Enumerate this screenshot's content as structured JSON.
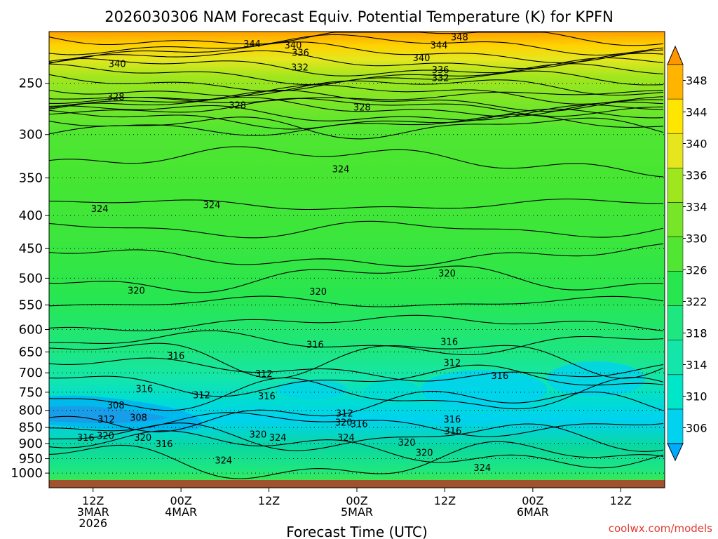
{
  "chart_data": {
    "type": "heatmap",
    "title": "2026030306 NAM Forecast Equiv. Potential Temperature (K) for KPFN",
    "xlabel": "Forecast Time (UTC)",
    "ylabel": "",
    "credit": "coolwx.com/models",
    "x_range_hours": [
      0,
      84
    ],
    "x_ticks": [
      {
        "hour": 6,
        "lines": [
          "12Z",
          "3MAR",
          "2026"
        ]
      },
      {
        "hour": 18,
        "lines": [
          "00Z",
          "4MAR"
        ]
      },
      {
        "hour": 30,
        "lines": [
          "12Z"
        ]
      },
      {
        "hour": 42,
        "lines": [
          "00Z",
          "5MAR"
        ]
      },
      {
        "hour": 54,
        "lines": [
          "12Z"
        ]
      },
      {
        "hour": 66,
        "lines": [
          "00Z",
          "6MAR"
        ]
      },
      {
        "hour": 78,
        "lines": [
          "12Z"
        ]
      }
    ],
    "y_range_hpa": [
      1025,
      200
    ],
    "y_ticks": [
      "250",
      "300",
      "350",
      "400",
      "450",
      "500",
      "550",
      "600",
      "650",
      "700",
      "750",
      "800",
      "850",
      "900",
      "950",
      "1000"
    ],
    "colorbar": {
      "labels": [
        "306",
        "310",
        "314",
        "318",
        "322",
        "326",
        "330",
        "334",
        "336",
        "340",
        "344",
        "348"
      ],
      "colors": [
        "#00aaff",
        "#00d2f0",
        "#00e6c8",
        "#14e6aa",
        "#1ee680",
        "#28e650",
        "#50e632",
        "#78e628",
        "#a0e61e",
        "#e6e61e",
        "#ffe600",
        "#ffb400",
        "#ff9600"
      ]
    },
    "contour_labels": [
      {
        "text": "344",
        "hour": 27.7,
        "hpa": 217
      },
      {
        "text": "340",
        "hour": 33.3,
        "hpa": 218
      },
      {
        "text": "336",
        "hour": 34.3,
        "hpa": 224
      },
      {
        "text": "332",
        "hour": 34.2,
        "hpa": 236
      },
      {
        "text": "348",
        "hour": 56.0,
        "hpa": 212
      },
      {
        "text": "344",
        "hour": 53.2,
        "hpa": 218
      },
      {
        "text": "340",
        "hour": 50.8,
        "hpa": 228
      },
      {
        "text": "336",
        "hour": 53.4,
        "hpa": 238
      },
      {
        "text": "332",
        "hour": 53.4,
        "hpa": 245
      },
      {
        "text": "340",
        "hour": 9.3,
        "hpa": 233
      },
      {
        "text": "328",
        "hour": 9.1,
        "hpa": 262
      },
      {
        "text": "328",
        "hour": 25.7,
        "hpa": 270
      },
      {
        "text": "328",
        "hour": 42.7,
        "hpa": 272
      },
      {
        "text": "324",
        "hour": 39.8,
        "hpa": 339
      },
      {
        "text": "324",
        "hour": 6.9,
        "hpa": 390
      },
      {
        "text": "324",
        "hour": 22.2,
        "hpa": 385
      },
      {
        "text": "320",
        "hour": 54.3,
        "hpa": 491
      },
      {
        "text": "320",
        "hour": 36.7,
        "hpa": 524
      },
      {
        "text": "320",
        "hour": 11.9,
        "hpa": 522
      },
      {
        "text": "316",
        "hour": 36.3,
        "hpa": 632
      },
      {
        "text": "316",
        "hour": 54.6,
        "hpa": 626
      },
      {
        "text": "316",
        "hour": 17.3,
        "hpa": 658
      },
      {
        "text": "312",
        "hour": 55.0,
        "hpa": 675
      },
      {
        "text": "316",
        "hour": 61.5,
        "hpa": 707
      },
      {
        "text": "312",
        "hour": 29.3,
        "hpa": 701
      },
      {
        "text": "316",
        "hour": 13.0,
        "hpa": 740
      },
      {
        "text": "312",
        "hour": 20.8,
        "hpa": 757
      },
      {
        "text": "316",
        "hour": 29.7,
        "hpa": 760
      },
      {
        "text": "308",
        "hour": 9.1,
        "hpa": 785
      },
      {
        "text": "312",
        "hour": 7.8,
        "hpa": 825
      },
      {
        "text": "308",
        "hour": 12.2,
        "hpa": 820
      },
      {
        "text": "312",
        "hour": 40.3,
        "hpa": 808
      },
      {
        "text": "320",
        "hour": 40.2,
        "hpa": 834
      },
      {
        "text": "316",
        "hour": 42.3,
        "hpa": 838
      },
      {
        "text": "316",
        "hour": 55.0,
        "hpa": 825
      },
      {
        "text": "316",
        "hour": 55.1,
        "hpa": 860
      },
      {
        "text": "316",
        "hour": 5.0,
        "hpa": 880
      },
      {
        "text": "320",
        "hour": 7.7,
        "hpa": 875
      },
      {
        "text": "320",
        "hour": 12.8,
        "hpa": 880
      },
      {
        "text": "316",
        "hour": 15.7,
        "hpa": 900
      },
      {
        "text": "320",
        "hour": 28.5,
        "hpa": 870
      },
      {
        "text": "324",
        "hour": 31.2,
        "hpa": 880
      },
      {
        "text": "324",
        "hour": 40.5,
        "hpa": 880
      },
      {
        "text": "320",
        "hour": 48.8,
        "hpa": 896
      },
      {
        "text": "320",
        "hour": 51.2,
        "hpa": 929
      },
      {
        "text": "324",
        "hour": 23.8,
        "hpa": 955
      },
      {
        "text": "324",
        "hour": 59.1,
        "hpa": 980
      }
    ]
  }
}
